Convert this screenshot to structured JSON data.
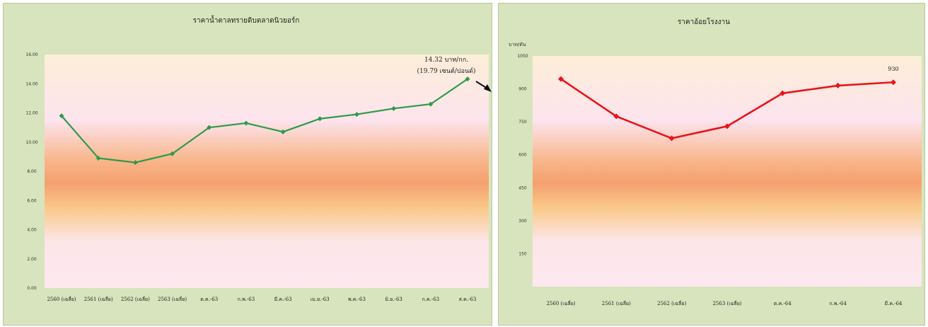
{
  "chart_data": [
    {
      "type": "line",
      "title": "ราคาน้ำตาลทรายดิบตลาดนิวยอร์ก",
      "ylabel": "",
      "ylim": [
        0,
        16
      ],
      "yticks": [
        "0.00",
        "2.00",
        "4.00",
        "6.00",
        "8.00",
        "10.00",
        "12.00",
        "14.00",
        "16.00"
      ],
      "categories": [
        "2560 (เฉลี่ย)",
        "2561 (เฉลี่ย)",
        "2562 (เฉลี่ย)",
        "2563 (เฉลี่ย)",
        "ต.ค.-63",
        "ก.พ.-63",
        "มี.ค.-63",
        "เม.ย.-63",
        "พ.ค.-63",
        "มิ.ย.-63",
        "ก.ค.-63",
        "ส.ค.-63"
      ],
      "series": [
        {
          "color": "#2e9a4a",
          "values": [
            11.8,
            8.9,
            8.6,
            9.2,
            11.0,
            11.3,
            10.7,
            11.6,
            11.9,
            12.3,
            12.6,
            14.32
          ]
        }
      ],
      "annotation": {
        "lines": [
          "14.32 บาท/กก.",
          "(19.79 เซนต์/ปอนด์)"
        ]
      },
      "grid": false
    },
    {
      "type": "line",
      "title": "ราคาอ้อยโรงงาน",
      "ylabel": "บาท/ตัน",
      "ylim": [
        0,
        1050
      ],
      "yticks": [
        "150",
        "300",
        "450",
        "600",
        "750",
        "900",
        "1050"
      ],
      "categories": [
        "2560 (เฉลี่ย)",
        "2561 (เฉลี่ย)",
        "2562 (เฉลี่ย)",
        "2563 (เฉลี่ย)",
        "ต.ค.-64",
        "ก.พ.-64",
        "มี.ค.-64"
      ],
      "series": [
        {
          "color": "#e8141b",
          "values": [
            945,
            775,
            675,
            730,
            880,
            915,
            930
          ]
        }
      ],
      "annotation": {
        "lines": [
          "930"
        ]
      },
      "grid": false
    }
  ]
}
